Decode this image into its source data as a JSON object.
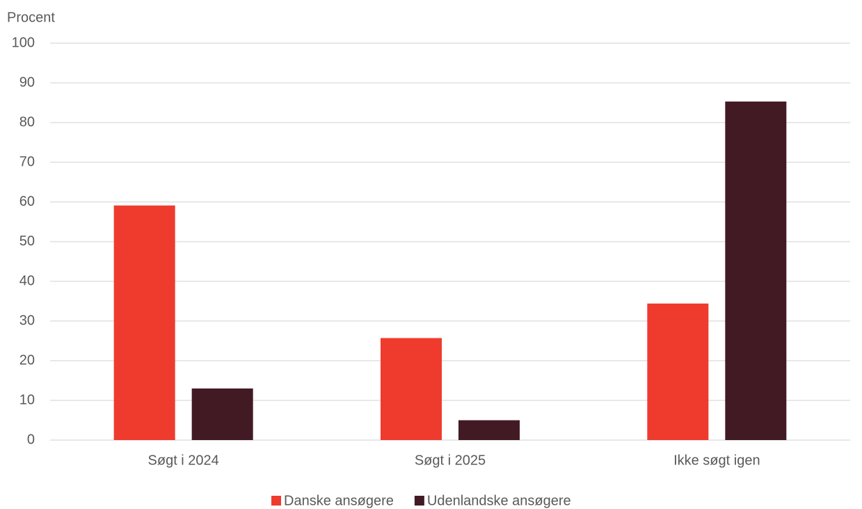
{
  "chart_data": {
    "type": "bar",
    "y_axis_label": "Procent",
    "categories": [
      "Søgt i 2024",
      "Søgt i 2025",
      "Ikke søgt igen"
    ],
    "series": [
      {
        "name": "Danske ansøgere",
        "color": "#ee3b2e",
        "values": [
          59.1,
          25.7,
          34.4
        ]
      },
      {
        "name": "Udenlandske ansøgere",
        "color": "#421a24",
        "values": [
          13.0,
          5.0,
          85.3
        ]
      }
    ],
    "ylim": [
      0,
      100
    ],
    "yticks": [
      0,
      10,
      20,
      30,
      40,
      50,
      60,
      70,
      80,
      90,
      100
    ],
    "grid": true,
    "legend": "bottom"
  }
}
